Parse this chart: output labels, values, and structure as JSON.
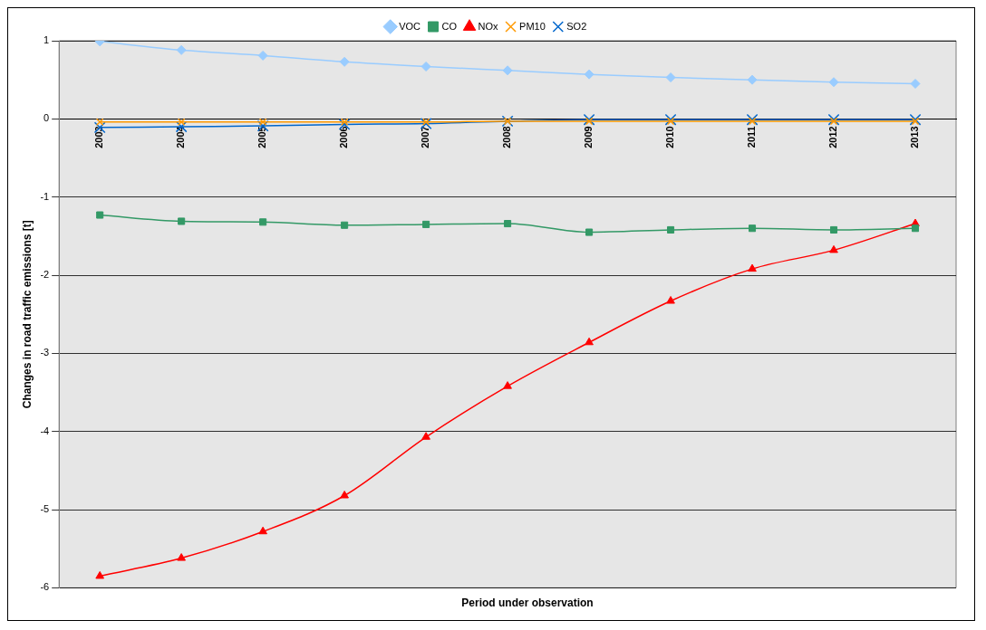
{
  "chart_data": {
    "type": "line",
    "xlabel": "Period under observation",
    "ylabel": "Changes in road traffic emissions [t]",
    "categories": [
      "2003",
      "2004",
      "2005",
      "2006",
      "2007",
      "2008",
      "2009",
      "2010",
      "2011",
      "2012",
      "2013"
    ],
    "ylim": [
      -6,
      1
    ],
    "yticks": [
      -6,
      -5,
      -4,
      -3,
      -2,
      -1,
      0,
      1
    ],
    "grid": "y",
    "legend": "top",
    "series": [
      {
        "name": "VOC",
        "color": "#99ccff",
        "marker": "diamond",
        "values": [
          0.99,
          0.88,
          0.81,
          0.73,
          0.67,
          0.62,
          0.57,
          0.53,
          0.5,
          0.47,
          0.45
        ]
      },
      {
        "name": "CO",
        "color": "#339966",
        "marker": "square",
        "values": [
          -1.23,
          -1.31,
          -1.32,
          -1.36,
          -1.35,
          -1.34,
          -1.45,
          -1.42,
          -1.4,
          -1.42,
          -1.4
        ]
      },
      {
        "name": "NOx",
        "color": "#ff0000",
        "marker": "triangle",
        "values": [
          -5.85,
          -5.62,
          -5.28,
          -4.82,
          -4.07,
          -3.42,
          -2.86,
          -2.33,
          -1.92,
          -1.68,
          -1.34
        ]
      },
      {
        "name": "PM10",
        "color": "#ff9900",
        "marker": "cross",
        "values": [
          -0.04,
          -0.04,
          -0.04,
          -0.04,
          -0.04,
          -0.03,
          -0.03,
          -0.03,
          -0.03,
          -0.03,
          -0.03
        ]
      },
      {
        "name": "SO2",
        "color": "#0066cc",
        "marker": "cross",
        "values": [
          -0.11,
          -0.1,
          -0.09,
          -0.07,
          -0.06,
          -0.03,
          -0.01,
          -0.01,
          -0.01,
          -0.01,
          -0.01
        ]
      }
    ]
  }
}
